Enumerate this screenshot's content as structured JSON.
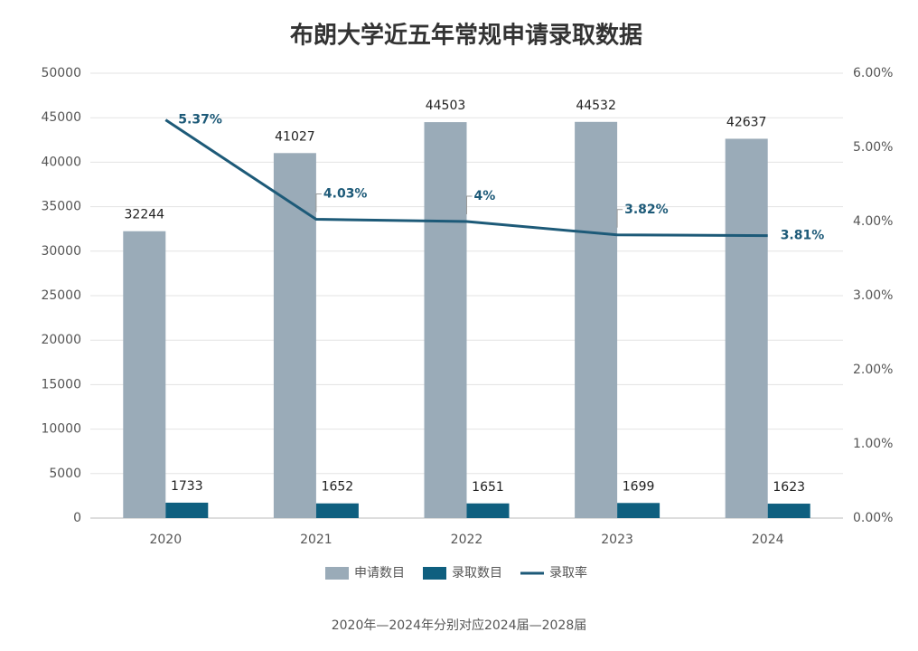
{
  "chart_data": {
    "type": "bar",
    "title": "布朗大学近五年常规申请录取数据",
    "footnote": "2020年—2024年分别对应2024届—2028届",
    "categories": [
      "2020",
      "2021",
      "2022",
      "2023",
      "2024"
    ],
    "series": [
      {
        "name": "申请数目",
        "type": "bar",
        "color": "#9aabb8",
        "values": [
          32244,
          41027,
          44503,
          44532,
          42637
        ]
      },
      {
        "name": "录取数目",
        "type": "bar",
        "color": "#0f5f7f",
        "values": [
          1733,
          1652,
          1651,
          1699,
          1623
        ]
      },
      {
        "name": "录取率",
        "type": "line",
        "axis": "y2",
        "color": "#1d5a78",
        "values": [
          5.37,
          4.03,
          4,
          3.82,
          3.81
        ],
        "value_labels": [
          "5.37%",
          "4.03%",
          "4%",
          "3.82%",
          "3.81%"
        ]
      }
    ],
    "ylim": [
      0,
      50000
    ],
    "yticks": [
      0,
      5000,
      10000,
      15000,
      20000,
      25000,
      30000,
      35000,
      40000,
      45000,
      50000
    ],
    "y2lim": [
      0,
      6
    ],
    "y2ticks": [
      {
        "value": 0,
        "label": "0.00%"
      },
      {
        "value": 1,
        "label": "1.00%"
      },
      {
        "value": 2,
        "label": "2.00%"
      },
      {
        "value": 3,
        "label": "3.00%"
      },
      {
        "value": 4,
        "label": "4.00%"
      },
      {
        "value": 5,
        "label": "5.00%"
      },
      {
        "value": 6,
        "label": "6.00%"
      }
    ],
    "grid": true,
    "legend": "bottom"
  }
}
